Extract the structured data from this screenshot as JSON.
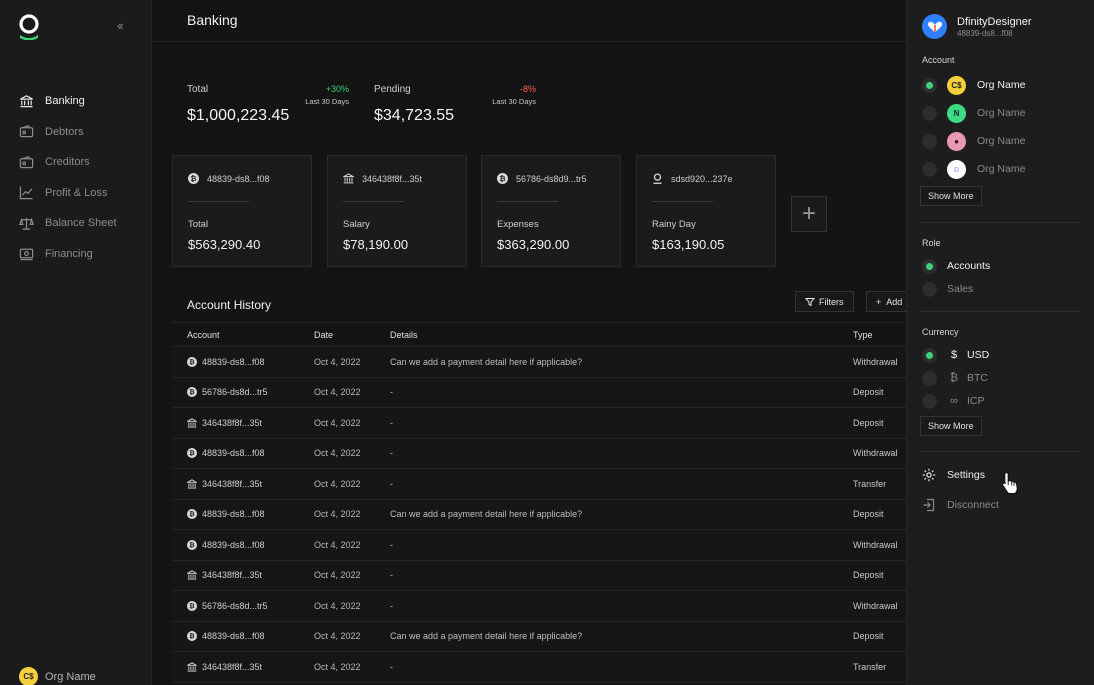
{
  "sidebar": {
    "items": [
      {
        "label": "Banking",
        "icon": "bank-icon",
        "active": true
      },
      {
        "label": "Debtors",
        "icon": "wallet-icon"
      },
      {
        "label": "Creditors",
        "icon": "wallet-icon"
      },
      {
        "label": "Profit & Loss",
        "icon": "chart-line-icon"
      },
      {
        "label": "Balance Sheet",
        "icon": "scale-icon"
      },
      {
        "label": "Financing",
        "icon": "cash-icon"
      }
    ],
    "org_name": "Org Name"
  },
  "header": {
    "title": "Banking"
  },
  "stats": {
    "total": {
      "label": "Total",
      "value": "$1,000,223.45",
      "change": "+30%",
      "period": "Last 30 Days"
    },
    "pending": {
      "label": "Pending",
      "value": "$34,723.55",
      "change": "-8%",
      "period": "Last 30 Days"
    }
  },
  "accounts": [
    {
      "id": "48839-ds8...f08",
      "name": "Total",
      "amount": "$563,290.40",
      "icon": "bitcoin-icon"
    },
    {
      "id": "346438f8f...35t",
      "name": "Salary",
      "amount": "$78,190.00",
      "icon": "bank-icon"
    },
    {
      "id": "56786-ds8d9...tr5",
      "name": "Expenses",
      "amount": "$363,290.00",
      "icon": "bitcoin-icon"
    },
    {
      "id": "sdsd920...237e",
      "name": "Rainy Day",
      "amount": "$163,190.05",
      "icon": "location-pin-icon"
    }
  ],
  "history": {
    "title": "Account History",
    "filters_label": "Filters",
    "add_label": "Add",
    "columns": [
      "Account",
      "Date",
      "Details",
      "Type"
    ],
    "rows": [
      {
        "account": "48839-ds8...f08",
        "icon": "bitcoin",
        "date": "Oct 4, 2022",
        "details": "Can we add a payment detail here if applicable?",
        "type": "Withdrawal"
      },
      {
        "account": "56786-ds8d...tr5",
        "icon": "bitcoin",
        "date": "Oct 4, 2022",
        "details": "-",
        "type": "Deposit"
      },
      {
        "account": "346438f8f...35t",
        "icon": "bank",
        "date": "Oct 4, 2022",
        "details": "-",
        "type": "Deposit"
      },
      {
        "account": "48839-ds8...f08",
        "icon": "bitcoin",
        "date": "Oct 4, 2022",
        "details": "-",
        "type": "Withdrawal"
      },
      {
        "account": "346438f8f...35t",
        "icon": "bank",
        "date": "Oct 4, 2022",
        "details": "-",
        "type": "Transfer"
      },
      {
        "account": "48839-ds8...f08",
        "icon": "bitcoin",
        "date": "Oct 4, 2022",
        "details": "Can we add a payment detail here if applicable?",
        "type": "Deposit"
      },
      {
        "account": "48839-ds8...f08",
        "icon": "bitcoin",
        "date": "Oct 4, 2022",
        "details": "-",
        "type": "Withdrawal"
      },
      {
        "account": "346438f8f...35t",
        "icon": "bank",
        "date": "Oct 4, 2022",
        "details": "-",
        "type": "Deposit"
      },
      {
        "account": "56786-ds8d...tr5",
        "icon": "bitcoin",
        "date": "Oct 4, 2022",
        "details": "-",
        "type": "Withdrawal"
      },
      {
        "account": "48839-ds8...f08",
        "icon": "bitcoin",
        "date": "Oct 4, 2022",
        "details": "Can we add a payment detail here if applicable?",
        "type": "Deposit"
      },
      {
        "account": "346438f8f...35t",
        "icon": "bank",
        "date": "Oct 4, 2022",
        "details": "-",
        "type": "Transfer"
      }
    ]
  },
  "panel": {
    "user_name": "DfinityDesigner",
    "user_id": "48839-ds8...f08",
    "account_label": "Account",
    "orgs": [
      {
        "name": "Org Name",
        "selected": true,
        "color": "#f4d03f"
      },
      {
        "name": "Org Name",
        "color": "#3ddc84"
      },
      {
        "name": "Org Name",
        "color": "#e89ab0"
      },
      {
        "name": "Org Name",
        "color": "#6a5cff"
      }
    ],
    "show_more": "Show More",
    "role_label": "Role",
    "roles": [
      {
        "name": "Accounts",
        "selected": true
      },
      {
        "name": "Sales"
      }
    ],
    "currency_label": "Currency",
    "currencies": [
      {
        "name": "USD",
        "symbol": "$",
        "selected": true
      },
      {
        "name": "BTC",
        "symbol": "₿"
      },
      {
        "name": "ICP",
        "symbol": "∞"
      }
    ],
    "show_more_2": "Show More",
    "settings_label": "Settings",
    "disconnect_label": "Disconnect"
  },
  "colors": {
    "accent": "#3ed17a",
    "positive": "#39d37a",
    "negative": "#ff5a5a"
  }
}
